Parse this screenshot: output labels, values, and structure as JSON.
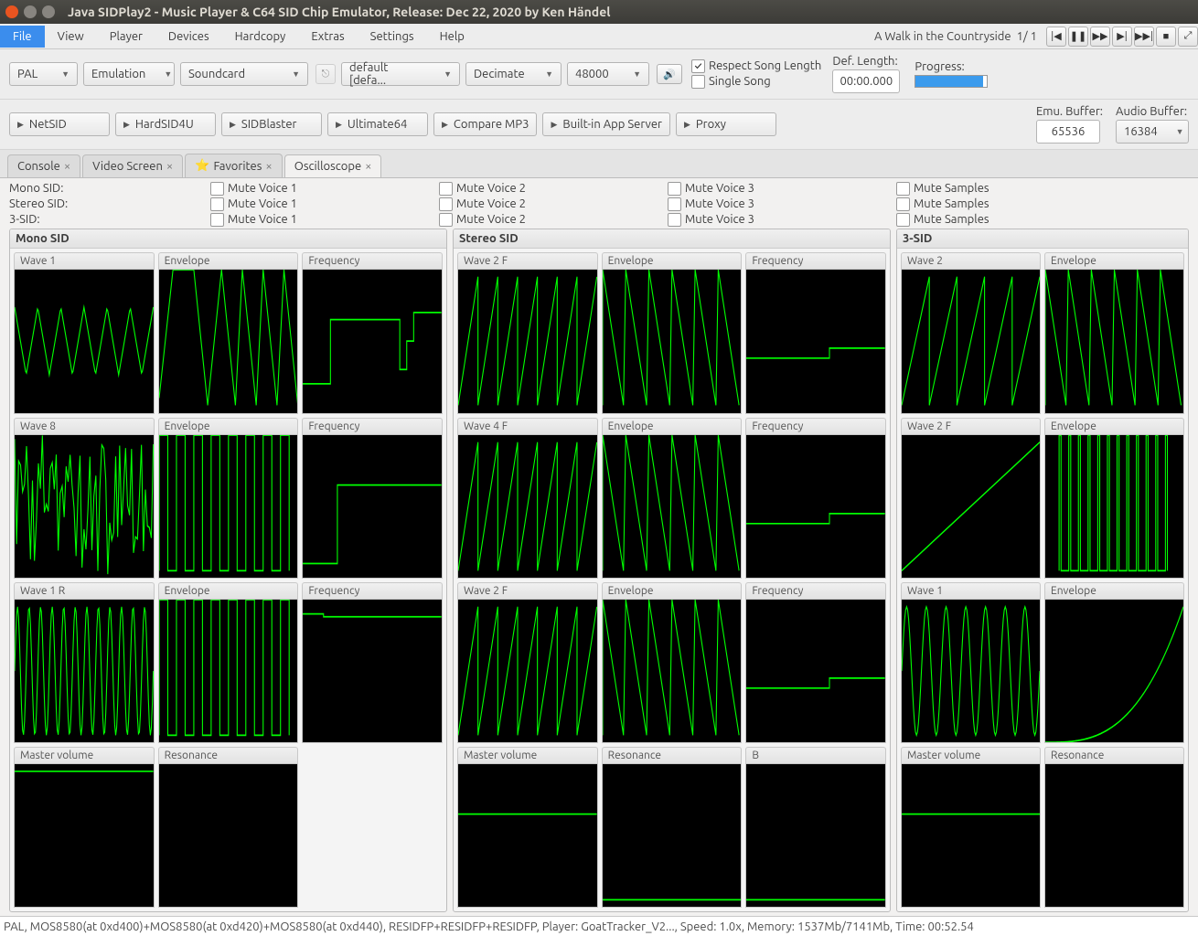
{
  "window": {
    "title": "Java SIDPlay2 - Music Player & C64 SID Chip Emulator, Release: Dec 22, 2020 by Ken Händel"
  },
  "menu": {
    "items": [
      "File",
      "View",
      "Player",
      "Devices",
      "Hardcopy",
      "Extras",
      "Settings",
      "Help"
    ],
    "active": 0
  },
  "transport": {
    "song_title": "A Walk in the Countryside",
    "track_pos": "1/ 1",
    "prev": "|◀",
    "pause": "❚❚",
    "ff": "▶▶",
    "next": "▶|",
    "skip": "▶▶|",
    "stop": "■",
    "expand": "⤢"
  },
  "row1": {
    "video": "PAL",
    "emulation": "Emulation",
    "soundcard": "Soundcard",
    "default": "default [defa...",
    "decimate": "Decimate",
    "samplerate": "48000",
    "speaker": "🔊",
    "respect": "Respect Song Length",
    "single": "Single Song",
    "deflen_label": "Def. Length:",
    "deflen_val": "00:00.000",
    "progress_label": "Progress:",
    "progress_pct": 95
  },
  "row2": {
    "btns": [
      "NetSID",
      "HardSID4U",
      "SIDBlaster",
      "Ultimate64",
      "Compare MP3",
      "Built-in App Server",
      "Proxy"
    ],
    "emu_label": "Emu. Buffer:",
    "emu_val": "65536",
    "audio_label": "Audio Buffer:",
    "audio_val": "16384"
  },
  "tabs": {
    "items": [
      "Console",
      "Video Screen",
      "Favorites",
      "Oscilloscope"
    ],
    "fav_icon": "⭐",
    "active": 3
  },
  "mute": {
    "rows": [
      "Mono SID:",
      "Stereo SID:",
      "3-SID:"
    ],
    "v1": "Mute Voice 1",
    "v2": "Mute Voice 2",
    "v3": "Mute Voice 3",
    "smp": "Mute Samples"
  },
  "columns": {
    "mono": {
      "title": "Mono SID",
      "scopes": [
        {
          "t": "Wave 1",
          "w": "tri"
        },
        {
          "t": "Envelope",
          "w": "env1"
        },
        {
          "t": "Frequency",
          "w": "step"
        },
        {
          "t": "Wave 8",
          "w": "noise"
        },
        {
          "t": "Envelope",
          "w": "env2"
        },
        {
          "t": "Frequency",
          "w": "step2"
        },
        {
          "t": "Wave 1 R",
          "w": "sine"
        },
        {
          "t": "Envelope",
          "w": "pulses"
        },
        {
          "t": "Frequency",
          "w": "flat"
        },
        {
          "t": "Master volume",
          "w": "flathigh"
        },
        {
          "t": "Resonance",
          "w": "empty"
        }
      ]
    },
    "stereo": {
      "title": "Stereo SID",
      "scopes": [
        {
          "t": "Wave 2 F",
          "w": "saw"
        },
        {
          "t": "Envelope",
          "w": "envd"
        },
        {
          "t": "Frequency",
          "w": "lowstep"
        },
        {
          "t": "Wave 4 F",
          "w": "saw"
        },
        {
          "t": "Envelope",
          "w": "envd"
        },
        {
          "t": "Frequency",
          "w": "lowstep"
        },
        {
          "t": "Wave 2 F",
          "w": "saw"
        },
        {
          "t": "Envelope",
          "w": "envd"
        },
        {
          "t": "Frequency",
          "w": "lowstep"
        },
        {
          "t": "Master volume",
          "w": "flathigh2"
        },
        {
          "t": "Resonance",
          "w": "flatlow"
        },
        {
          "t": "B",
          "w": "flatlow"
        }
      ]
    },
    "threesid": {
      "title": "3-SID",
      "scopes": [
        {
          "t": "Wave 2",
          "w": "saw2"
        },
        {
          "t": "Envelope",
          "w": "envd2"
        },
        {
          "t": "Wave 2 F",
          "w": "ramp"
        },
        {
          "t": "Envelope",
          "w": "pulsebunch"
        },
        {
          "t": "Wave 1",
          "w": "sine2"
        },
        {
          "t": "Envelope",
          "w": "curve"
        },
        {
          "t": "Master volume",
          "w": "flathigh2"
        },
        {
          "t": "Resonance",
          "w": "empty"
        }
      ]
    }
  },
  "wave_color": "#00ff00",
  "scope_bg": "#000000",
  "status": "PAL, MOS8580(at 0xd400)+MOS8580(at 0xd420)+MOS8580(at 0xd440), RESIDFP+RESIDFP+RESIDFP, Player: GoatTracker_V2..., Speed: 1.0x, Memory: 1537Mb/7141Mb, Time: 00:52.54"
}
